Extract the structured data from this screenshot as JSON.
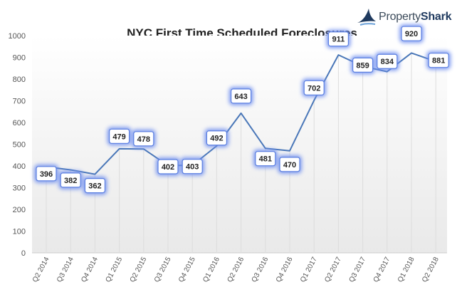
{
  "brand": {
    "name_part1": "Property",
    "name_part2": "Shark",
    "logo_icon": "shark-fin-icon"
  },
  "colors": {
    "line": "#4a77b8",
    "label_glow": "#6f8ff0",
    "gridline": "#dddddd",
    "axis_text": "#555555",
    "title": "#222222"
  },
  "chart_data": {
    "type": "line",
    "title": "NYC First Time Scheduled Foreclosures",
    "xlabel": "",
    "ylabel": "",
    "ylim": [
      0,
      1000
    ],
    "yticks": [
      0,
      100,
      200,
      300,
      400,
      500,
      600,
      700,
      800,
      900,
      1000
    ],
    "categories": [
      "Q2 2014",
      "Q3 2014",
      "Q4 2014",
      "Q1 2015",
      "Q2 2015",
      "Q3 2015",
      "Q4 2015",
      "Q1 2016",
      "Q2 2016",
      "Q3 2016",
      "Q4 2016",
      "Q1 2017",
      "Q2 2017",
      "Q3 2017",
      "Q4 2017",
      "Q1 2018",
      "Q2 2018"
    ],
    "values": [
      396,
      382,
      362,
      479,
      478,
      402,
      403,
      492,
      643,
      481,
      470,
      702,
      911,
      859,
      834,
      920,
      881
    ],
    "grid": "vertical drop lines",
    "legend": "none"
  }
}
